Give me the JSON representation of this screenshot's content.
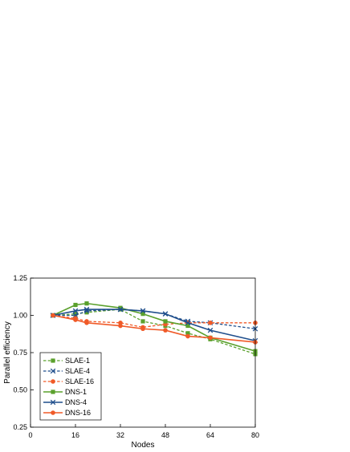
{
  "chart_data": {
    "type": "line",
    "xlabel": "Nodes",
    "ylabel": "Parallel efficiency",
    "xlim": [
      0,
      80
    ],
    "ylim": [
      0.25,
      1.25
    ],
    "xticks": [
      0,
      16,
      32,
      48,
      64,
      80
    ],
    "yticks": [
      0.25,
      0.5,
      0.75,
      1.0,
      1.25
    ],
    "xtick_labels": [
      "0",
      "16",
      "32",
      "48",
      "64",
      "80"
    ],
    "ytick_labels": [
      "0.25",
      "0.50",
      "0.75",
      "1.00",
      "1.25"
    ],
    "grid": false,
    "legend_position": "bottom-left",
    "series": [
      {
        "name": "SLAE-1",
        "color": "#5aa02c",
        "dash": true,
        "marker": "square",
        "x": [
          8,
          16,
          20,
          32,
          40,
          48,
          56,
          64,
          80
        ],
        "y": [
          1.0,
          1.01,
          1.02,
          1.04,
          0.96,
          0.93,
          0.88,
          0.84,
          0.74
        ]
      },
      {
        "name": "SLAE-4",
        "color": "#1f4e8c",
        "dash": true,
        "marker": "x",
        "x": [
          8,
          16,
          20,
          32,
          40,
          48,
          56,
          64,
          80
        ],
        "y": [
          1.0,
          1.0,
          1.03,
          1.04,
          1.03,
          1.01,
          0.96,
          0.95,
          0.91
        ]
      },
      {
        "name": "SLAE-16",
        "color": "#f05a28",
        "dash": true,
        "marker": "circle",
        "x": [
          8,
          16,
          20,
          32,
          40,
          48,
          56,
          64,
          80
        ],
        "y": [
          1.0,
          0.98,
          0.96,
          0.95,
          0.92,
          0.94,
          0.95,
          0.95,
          0.95
        ]
      },
      {
        "name": "DNS-1",
        "color": "#5aa02c",
        "dash": false,
        "marker": "square",
        "x": [
          8,
          16,
          20,
          32,
          40,
          48,
          56,
          64,
          80
        ],
        "y": [
          1.0,
          1.07,
          1.08,
          1.05,
          1.01,
          0.96,
          0.93,
          0.85,
          0.76
        ]
      },
      {
        "name": "DNS-4",
        "color": "#1f4e8c",
        "dash": false,
        "marker": "x",
        "x": [
          8,
          16,
          20,
          32,
          40,
          48,
          56,
          64,
          80
        ],
        "y": [
          1.0,
          1.03,
          1.04,
          1.04,
          1.03,
          1.01,
          0.95,
          0.9,
          0.83
        ]
      },
      {
        "name": "DNS-16",
        "color": "#f05a28",
        "dash": false,
        "marker": "circle",
        "x": [
          8,
          16,
          20,
          32,
          40,
          48,
          56,
          64,
          80
        ],
        "y": [
          1.0,
          0.97,
          0.95,
          0.93,
          0.91,
          0.9,
          0.86,
          0.85,
          0.82
        ]
      }
    ]
  }
}
